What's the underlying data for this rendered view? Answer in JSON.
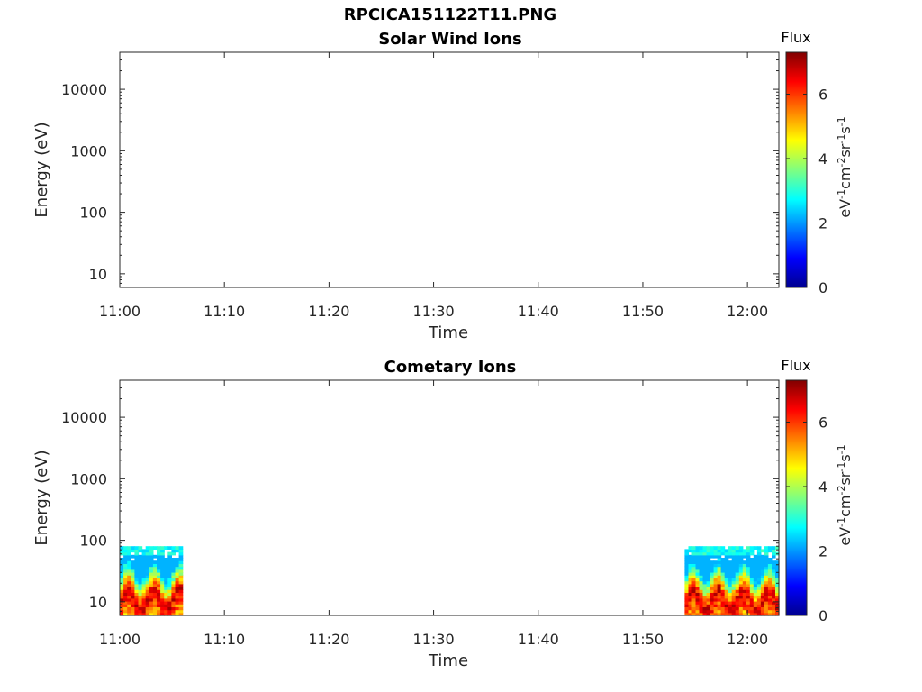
{
  "page": {
    "title": "RPCICA151122T11.PNG"
  },
  "colors": {
    "axis": "#262626",
    "background": "#ffffff"
  },
  "chart_data": [
    {
      "type": "heatmap",
      "title": "Solar Wind Ions",
      "xlabel": "Time",
      "ylabel": "Energy (eV)",
      "x_ticks": [
        "11:00",
        "11:10",
        "11:20",
        "11:30",
        "11:40",
        "11:50",
        "12:00"
      ],
      "y_ticks": [
        "10",
        "100",
        "1000",
        "10000"
      ],
      "y_scale": "log",
      "ylim": [
        6,
        40000
      ],
      "xlim": [
        "11:00",
        "12:03"
      ],
      "colorbar": {
        "title": "Flux",
        "label": "eV-1cm-2sr-1s-1",
        "ticks": [
          "0",
          "2",
          "4",
          "6"
        ],
        "range": [
          0,
          7.3
        ],
        "colormap": "jet"
      },
      "regions": []
    },
    {
      "type": "heatmap",
      "title": "Cometary Ions",
      "xlabel": "Time",
      "ylabel": "Energy (eV)",
      "x_ticks": [
        "11:00",
        "11:10",
        "11:20",
        "11:30",
        "11:40",
        "11:50",
        "12:00"
      ],
      "y_ticks": [
        "10",
        "100",
        "1000",
        "10000"
      ],
      "y_scale": "log",
      "ylim": [
        6,
        40000
      ],
      "xlim": [
        "11:00",
        "12:03"
      ],
      "colorbar": {
        "title": "Flux",
        "label": "eV-1cm-2sr-1s-1",
        "ticks": [
          "0",
          "2",
          "4",
          "6"
        ],
        "range": [
          0,
          7.3
        ],
        "colormap": "jet"
      },
      "regions": [
        {
          "t_start": "11:00",
          "t_end": "11:06",
          "e_min": 6,
          "e_max": 80,
          "peak_flux": 7
        },
        {
          "t_start": "11:54",
          "t_end": "12:03",
          "e_min": 6,
          "e_max": 80,
          "peak_flux": 7
        }
      ]
    }
  ]
}
